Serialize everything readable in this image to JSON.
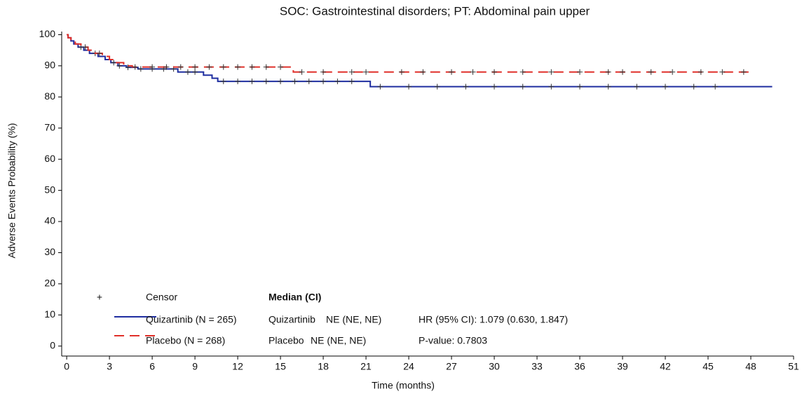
{
  "chart_data": {
    "type": "km",
    "title": "SOC: Gastrointestinal disorders; PT: Abdominal pain upper",
    "x_label": "Time (months)",
    "y_label": "Adverse Events Probability (%)",
    "xlim": [
      -0.35,
      51
    ],
    "ylim": [
      -3.2,
      101
    ],
    "xticks": [
      0,
      3,
      6,
      9,
      12,
      15,
      18,
      21,
      24,
      27,
      30,
      33,
      36,
      39,
      42,
      45,
      48,
      51
    ],
    "yticks": [
      0,
      10,
      20,
      30,
      40,
      50,
      60,
      70,
      80,
      90,
      100
    ],
    "censor_label": "Censor",
    "median_header": "Median (CI)",
    "series": [
      {
        "name": "Quizartinib (N = 265)",
        "short_name": "Quizartinib",
        "median": "NE (NE, NE)",
        "color": "#1f2ea0",
        "dash": false,
        "x": [
          0,
          0.1,
          0.3,
          0.5,
          0.8,
          1.2,
          1.6,
          2.2,
          2.7,
          3.1,
          3.6,
          4.2,
          5,
          7.8,
          9.6,
          10.2,
          10.6,
          21.3,
          49.5
        ],
        "values": [
          100,
          99,
          98,
          97,
          96,
          95,
          94,
          93,
          92,
          91,
          90,
          89.5,
          89,
          88,
          87,
          86,
          85,
          83.3,
          83.3
        ],
        "censor_x": [
          1,
          2,
          3.3,
          4.3,
          5.2,
          6,
          6.8,
          7.5,
          8.5,
          9,
          11,
          12,
          13,
          14,
          15,
          16,
          17,
          18,
          19,
          20,
          22,
          24,
          26,
          28,
          30,
          32,
          34,
          36,
          38,
          40,
          42,
          44,
          45.5
        ],
        "censor_values": [
          96,
          94,
          91,
          89.5,
          89,
          89,
          89,
          89,
          88,
          88,
          85,
          85,
          85,
          85,
          85,
          85,
          85,
          85,
          85,
          85,
          83.3,
          83.3,
          83.3,
          83.3,
          83.3,
          83.3,
          83.3,
          83.3,
          83.3,
          83.3,
          83.3,
          83.3,
          83.3
        ]
      },
      {
        "name": "Placebo (N = 268)",
        "short_name": "Placebo",
        "median": "NE (NE, NE)",
        "color": "#e0302a",
        "dash": true,
        "x": [
          0,
          0.1,
          0.3,
          0.6,
          1,
          1.5,
          2,
          2.5,
          3,
          3.4,
          4,
          4.6,
          15.9,
          48
        ],
        "values": [
          100,
          99,
          98,
          97,
          96,
          95,
          94,
          93,
          92,
          91,
          90,
          89.6,
          88,
          88
        ],
        "censor_x": [
          1.3,
          2.3,
          3.7,
          4.8,
          6,
          7,
          8,
          9,
          10,
          11,
          12,
          13,
          14,
          15,
          16.5,
          18,
          20,
          21,
          23.5,
          25,
          27,
          28.5,
          30,
          32,
          34,
          36,
          38,
          39,
          41,
          42.5,
          44.5,
          46,
          47.5
        ],
        "censor_values": [
          96,
          94,
          90,
          89.6,
          89.6,
          89.6,
          89.6,
          89.6,
          89.6,
          89.6,
          89.6,
          89.6,
          89.6,
          89.6,
          88,
          88,
          88,
          88,
          88,
          88,
          88,
          88,
          88,
          88,
          88,
          88,
          88,
          88,
          88,
          88,
          88,
          88,
          88
        ]
      }
    ],
    "annotations": [
      "HR (95% CI): 1.079 (0.630, 1.847)",
      "P-value: 0.7803"
    ]
  }
}
